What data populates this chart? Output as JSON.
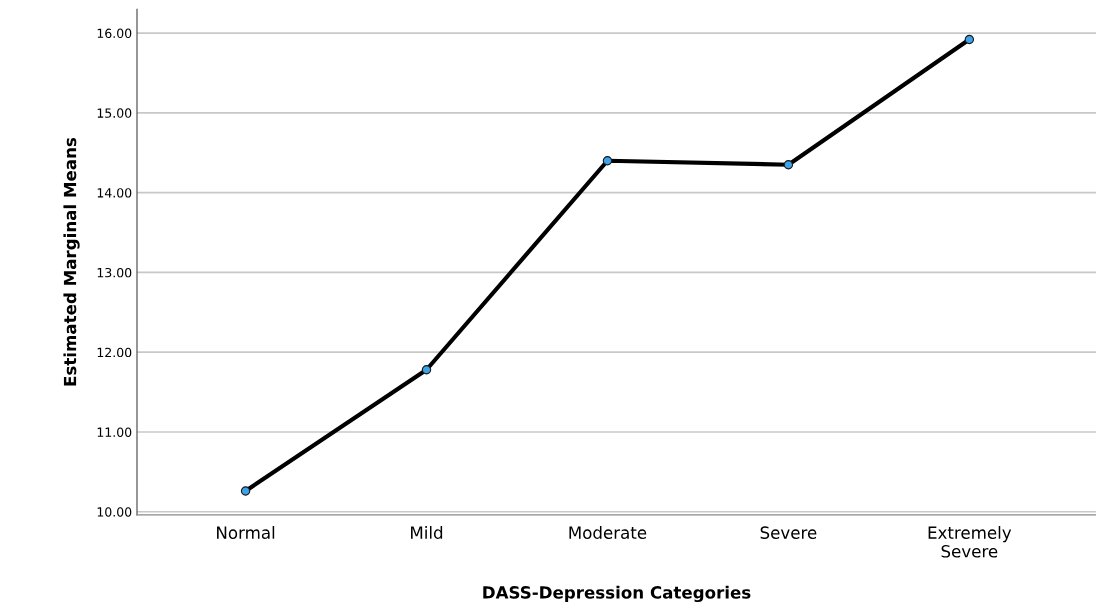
{
  "chart_data": {
    "type": "line",
    "xlabel": "DASS-Depression Categories",
    "ylabel": "Estimated Marginal Means",
    "categories": [
      "Normal",
      "Mild",
      "Moderate",
      "Severe",
      "Extremely\nSevere"
    ],
    "series": [
      {
        "color": "#000000",
        "values": [
          10.26,
          11.78,
          14.4,
          14.35,
          15.92
        ]
      }
    ],
    "marker": "circle",
    "line_style": "solid",
    "ylim": [
      9.96,
      16.3
    ],
    "yticks": [
      {
        "value": 10,
        "label": "10.00"
      },
      {
        "value": 11,
        "label": "11.00"
      },
      {
        "value": 12,
        "label": "12.00"
      },
      {
        "value": 13,
        "label": "13.00"
      },
      {
        "value": 14,
        "label": "14.00"
      },
      {
        "value": 15,
        "label": "15.00"
      },
      {
        "value": 16,
        "label": "16.00"
      }
    ],
    "grid": "y"
  }
}
